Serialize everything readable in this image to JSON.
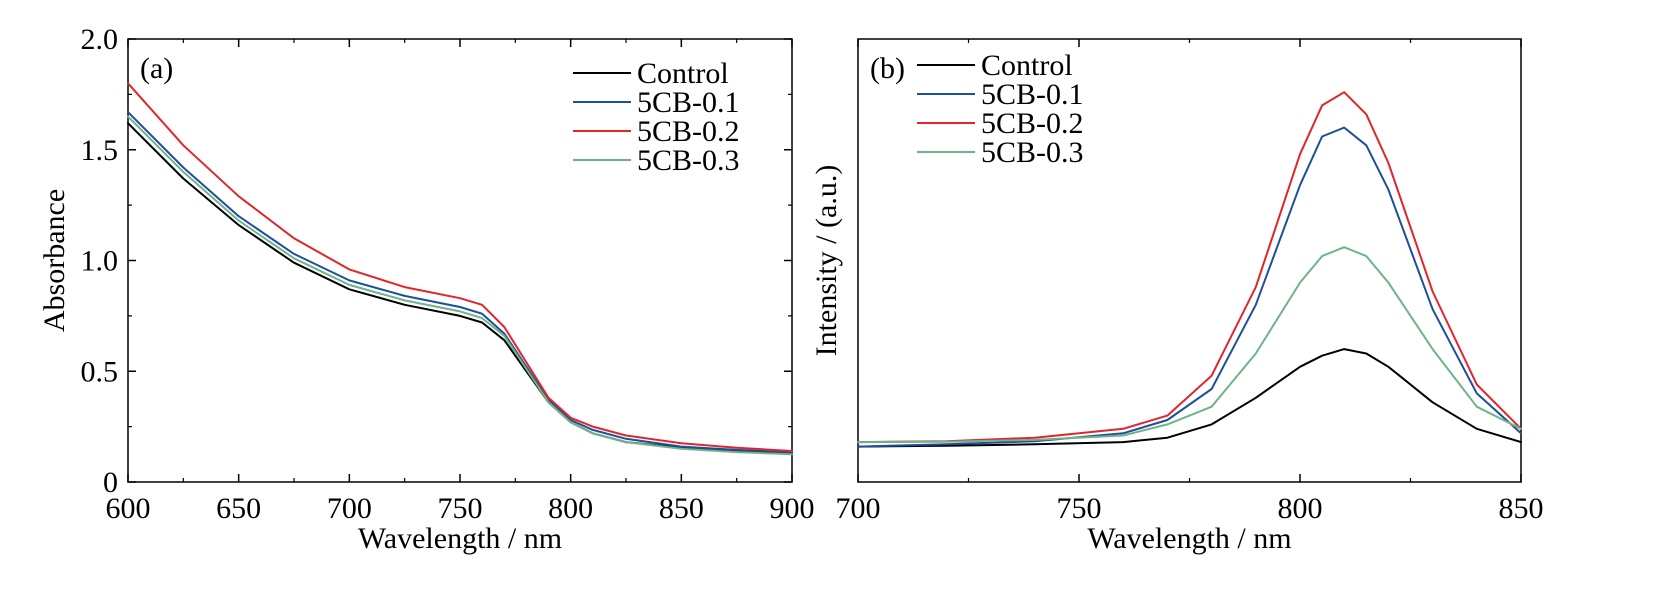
{
  "chart_data": [
    {
      "type": "line",
      "panel_label": "(a)",
      "xlabel": "Wavelength / nm",
      "ylabel": "Absorbance",
      "xlim": [
        600,
        900
      ],
      "ylim": [
        0,
        2.0
      ],
      "xticks": [
        600,
        650,
        700,
        750,
        800,
        850,
        900
      ],
      "xtick_labels": [
        "600",
        "650",
        "700",
        "750",
        "800",
        "850",
        "900"
      ],
      "yticks": [
        0,
        0.5,
        1.0,
        1.5,
        2.0
      ],
      "ytick_labels": [
        "0",
        "0.5",
        "1.0",
        "1.5",
        "2.0"
      ],
      "grid": false,
      "legend_position": "top-right",
      "series": [
        {
          "name": "Control",
          "color": "#000000",
          "x": [
            600,
            625,
            650,
            675,
            700,
            725,
            750,
            760,
            770,
            780,
            790,
            800,
            810,
            825,
            850,
            875,
            900
          ],
          "y": [
            1.62,
            1.37,
            1.16,
            0.99,
            0.87,
            0.8,
            0.75,
            0.72,
            0.64,
            0.5,
            0.36,
            0.27,
            0.22,
            0.18,
            0.155,
            0.14,
            0.13
          ]
        },
        {
          "name": "5CB-0.1",
          "color": "#1f4e9c",
          "x": [
            600,
            625,
            650,
            675,
            700,
            725,
            750,
            760,
            770,
            780,
            790,
            800,
            810,
            825,
            850,
            875,
            900
          ],
          "y": [
            1.67,
            1.42,
            1.2,
            1.03,
            0.91,
            0.84,
            0.79,
            0.76,
            0.67,
            0.52,
            0.37,
            0.28,
            0.235,
            0.195,
            0.16,
            0.145,
            0.135
          ]
        },
        {
          "name": "5CB-0.2",
          "color": "#e0262a",
          "x": [
            600,
            625,
            650,
            675,
            700,
            725,
            750,
            760,
            770,
            780,
            790,
            800,
            810,
            825,
            850,
            875,
            900
          ],
          "y": [
            1.8,
            1.52,
            1.29,
            1.1,
            0.96,
            0.88,
            0.83,
            0.8,
            0.7,
            0.54,
            0.38,
            0.29,
            0.25,
            0.21,
            0.175,
            0.155,
            0.14
          ]
        },
        {
          "name": "5CB-0.3",
          "color": "#6fb38a",
          "x": [
            600,
            625,
            650,
            675,
            700,
            725,
            750,
            760,
            770,
            780,
            790,
            800,
            810,
            825,
            850,
            875,
            900
          ],
          "y": [
            1.65,
            1.4,
            1.18,
            1.01,
            0.89,
            0.82,
            0.77,
            0.74,
            0.66,
            0.51,
            0.36,
            0.27,
            0.22,
            0.18,
            0.15,
            0.135,
            0.125
          ]
        }
      ]
    },
    {
      "type": "line",
      "panel_label": "(b)",
      "xlabel": "Wavelength / nm",
      "ylabel": "Intensity / (a.u.)",
      "xlim": [
        700,
        850
      ],
      "ylim": [
        0,
        1.0
      ],
      "xticks": [
        700,
        750,
        800,
        850
      ],
      "xtick_labels": [
        "700",
        "750",
        "800",
        "850"
      ],
      "grid": false,
      "legend_position": "top-left",
      "series": [
        {
          "name": "Control",
          "color": "#000000",
          "x": [
            700,
            720,
            740,
            760,
            770,
            780,
            790,
            800,
            805,
            810,
            815,
            820,
            830,
            840,
            850
          ],
          "y": [
            0.08,
            0.082,
            0.085,
            0.09,
            0.1,
            0.13,
            0.19,
            0.26,
            0.285,
            0.3,
            0.29,
            0.26,
            0.18,
            0.12,
            0.09
          ]
        },
        {
          "name": "5CB-0.1",
          "color": "#1f4e9c",
          "x": [
            700,
            720,
            740,
            760,
            770,
            780,
            790,
            800,
            805,
            810,
            815,
            820,
            830,
            840,
            850
          ],
          "y": [
            0.08,
            0.085,
            0.092,
            0.11,
            0.14,
            0.21,
            0.4,
            0.67,
            0.78,
            0.8,
            0.76,
            0.66,
            0.39,
            0.2,
            0.11
          ]
        },
        {
          "name": "5CB-0.2",
          "color": "#e0262a",
          "x": [
            700,
            720,
            740,
            760,
            770,
            780,
            790,
            800,
            805,
            810,
            815,
            820,
            830,
            840,
            850
          ],
          "y": [
            0.09,
            0.092,
            0.1,
            0.12,
            0.15,
            0.24,
            0.44,
            0.74,
            0.85,
            0.88,
            0.83,
            0.72,
            0.43,
            0.22,
            0.12
          ]
        },
        {
          "name": "5CB-0.3",
          "color": "#6fb38a",
          "x": [
            700,
            720,
            740,
            760,
            770,
            780,
            790,
            800,
            805,
            810,
            815,
            820,
            830,
            840,
            850
          ],
          "y": [
            0.09,
            0.091,
            0.095,
            0.105,
            0.13,
            0.17,
            0.29,
            0.45,
            0.51,
            0.53,
            0.51,
            0.45,
            0.3,
            0.17,
            0.12
          ]
        }
      ]
    }
  ]
}
